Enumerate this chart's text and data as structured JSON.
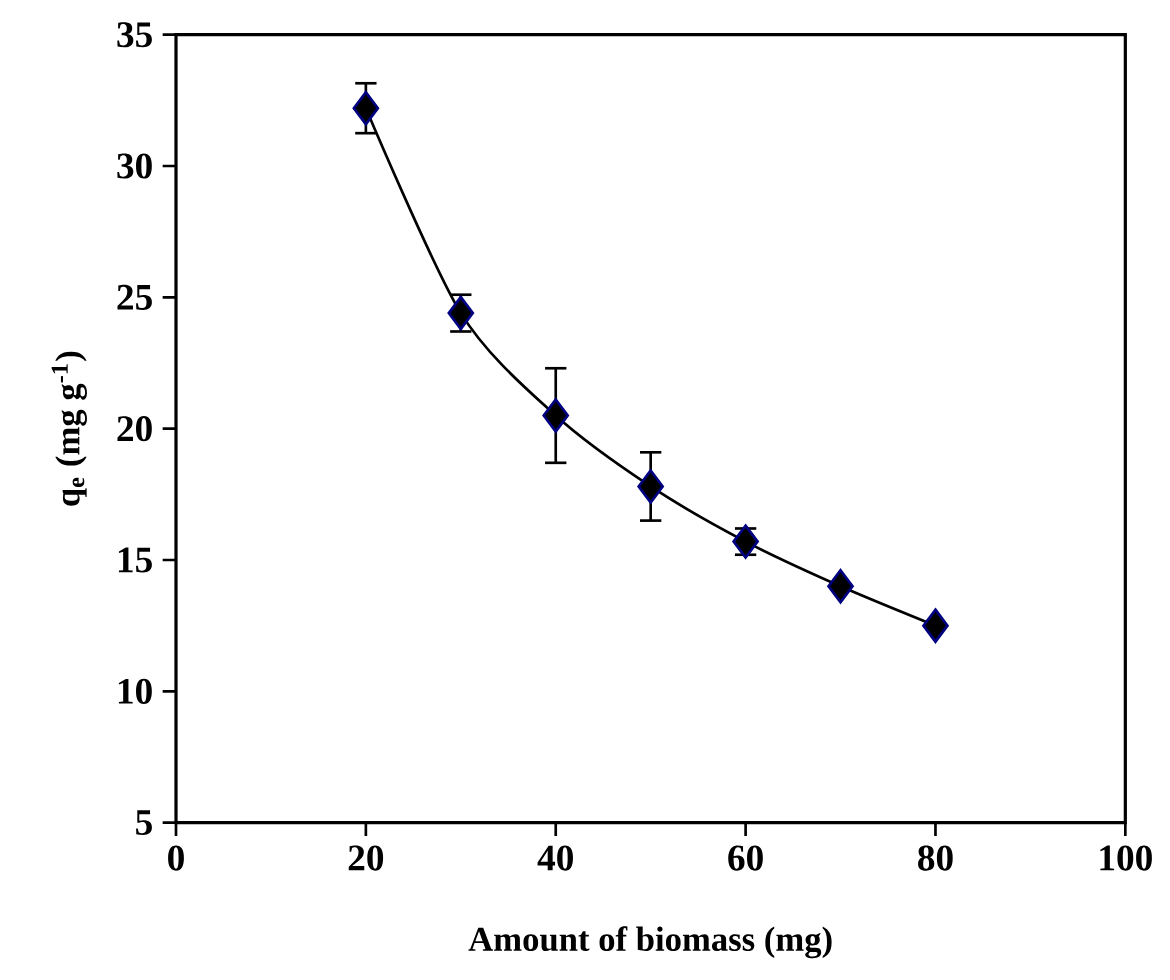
{
  "chart_data": {
    "type": "line",
    "xlabel": "Amount of biomass (mg)",
    "ylabel": "q$_{e}$ (mg g$^{-1}$)",
    "x": [
      20,
      30,
      40,
      50,
      60,
      70,
      80
    ],
    "series": [
      {
        "color": "#000000",
        "values": [
          32.2,
          24.4,
          20.5,
          17.8,
          15.7,
          14.0,
          12.5
        ],
        "errors": [
          0.95,
          0.7,
          1.8,
          1.3,
          0.5,
          null,
          null
        ]
      }
    ],
    "marker": "diamond",
    "line_style": "solid",
    "xlim": [
      0,
      100
    ],
    "xticks": [
      0,
      20,
      40,
      60,
      80,
      100
    ],
    "ylim": [
      5,
      35
    ],
    "yticks": [
      5,
      10,
      15,
      20,
      25,
      30,
      35
    ]
  }
}
